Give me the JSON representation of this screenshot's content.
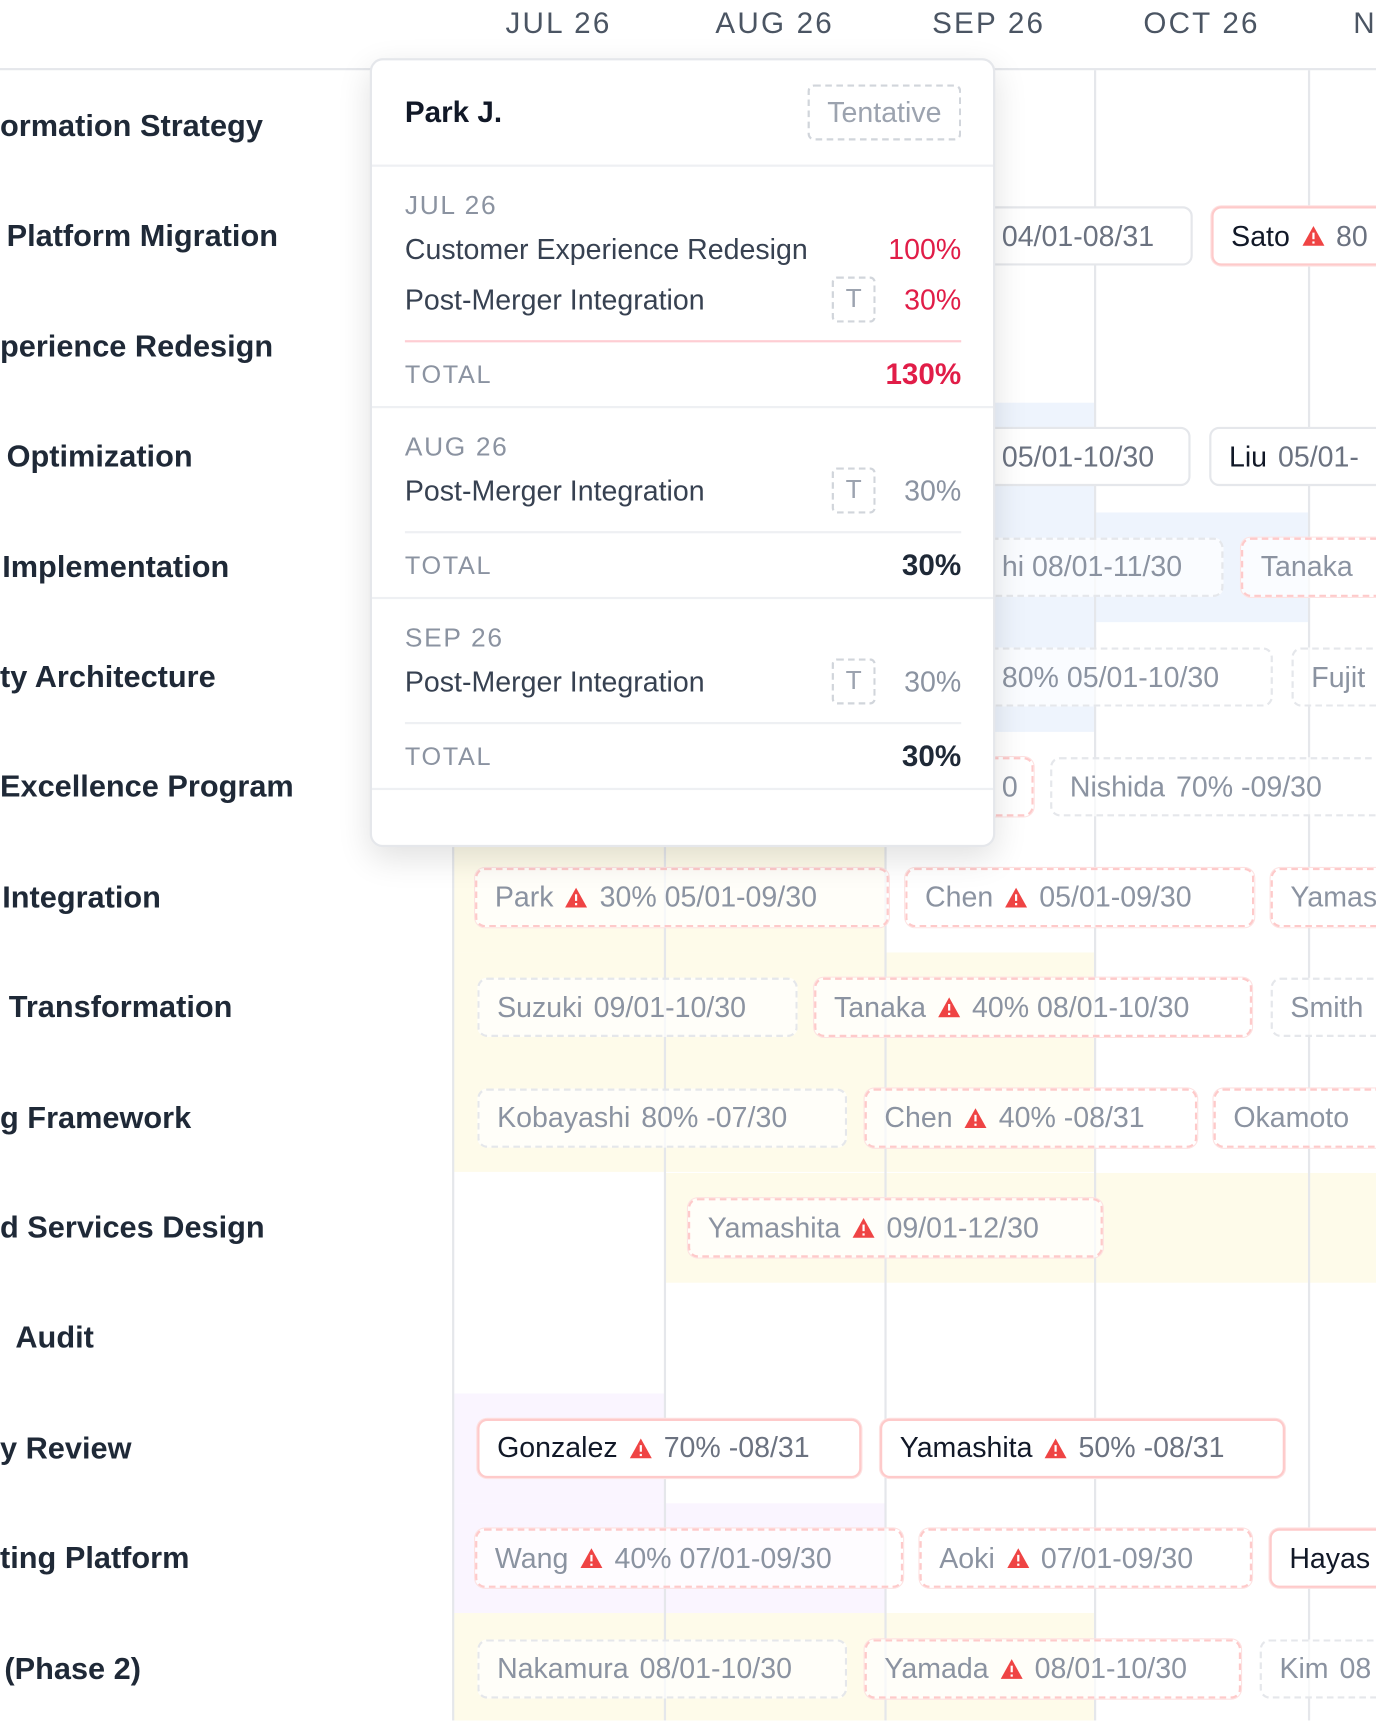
{
  "header": {
    "months": [
      "JUL 26",
      "AUG 26",
      "SEP 26",
      "OCT 26",
      "N"
    ]
  },
  "rows": [
    {
      "label": "ormation Strategy",
      "chips": []
    },
    {
      "label": "Platform Migration",
      "chips": [
        {
          "detail": "04/01-08/31"
        },
        {
          "name": "Sato",
          "detail": "80",
          "overallocated": true
        }
      ]
    },
    {
      "label": "perience Redesign",
      "chips": []
    },
    {
      "label": "Optimization",
      "chips": [
        {
          "detail": "05/01-10/30"
        },
        {
          "name": "Liu",
          "detail": "05/01-"
        }
      ]
    },
    {
      "label": "Implementation",
      "chips": [
        {
          "detail": "hi 08/01-11/30",
          "tentative": true
        },
        {
          "name": "Tanaka",
          "tentative": true,
          "overallocated": true
        }
      ]
    },
    {
      "label": "ty Architecture",
      "chips": [
        {
          "detail": "80% 05/01-10/30",
          "tentative": true
        },
        {
          "name": "Fujit",
          "tentative": true
        }
      ]
    },
    {
      "label": "Excellence Program",
      "chips": [
        {
          "detail": "0",
          "tentative": true,
          "overallocated": true
        },
        {
          "name": "Nishida",
          "detail": "70% -09/30",
          "tentative": true
        }
      ]
    },
    {
      "label": "Integration",
      "chips": [
        {
          "name": "Park",
          "detail": "30% 05/01-09/30",
          "tentative": true,
          "overallocated": true
        },
        {
          "name": "Chen",
          "detail": "05/01-09/30",
          "tentative": true,
          "overallocated": true
        },
        {
          "name": "Yamas",
          "tentative": true,
          "overallocated": true
        }
      ]
    },
    {
      "label": "Transformation",
      "chips": [
        {
          "name": "Suzuki",
          "detail": "09/01-10/30",
          "tentative": true
        },
        {
          "name": "Tanaka",
          "detail": "40% 08/01-10/30",
          "tentative": true,
          "overallocated": true
        },
        {
          "name": "Smith",
          "tentative": true
        }
      ]
    },
    {
      "label": "g Framework",
      "chips": [
        {
          "name": "Kobayashi",
          "detail": "80% -07/30",
          "tentative": true
        },
        {
          "name": "Chen",
          "detail": "40% -08/31",
          "tentative": true,
          "overallocated": true
        },
        {
          "name": "Okamoto",
          "tentative": true,
          "overallocated": true
        }
      ]
    },
    {
      "label": "d Services Design",
      "chips": [
        {
          "name": "Yamashita",
          "detail": "09/01-12/30",
          "tentative": true,
          "overallocated": true
        }
      ]
    },
    {
      "label": "Audit",
      "chips": []
    },
    {
      "label": "y Review",
      "chips": [
        {
          "name": "Gonzalez",
          "detail": "70% -08/31",
          "overallocated": true
        },
        {
          "name": "Yamashita",
          "detail": "50% -08/31",
          "overallocated": true
        }
      ]
    },
    {
      "label": "ting Platform",
      "chips": [
        {
          "name": "Wang",
          "detail": "40% 07/01-09/30",
          "tentative": true,
          "overallocated": true
        },
        {
          "name": "Aoki",
          "detail": "07/01-09/30",
          "tentative": true,
          "overallocated": true
        },
        {
          "name": "Hayas",
          "overallocated": true
        }
      ]
    },
    {
      "label": "(Phase 2)",
      "chips": [
        {
          "name": "Nakamura",
          "detail": "08/01-10/30",
          "tentative": true
        },
        {
          "name": "Yamada",
          "detail": "08/01-10/30",
          "tentative": true,
          "overallocated": true
        },
        {
          "name": "Kim",
          "detail": "08",
          "tentative": true
        }
      ]
    }
  ],
  "popup": {
    "name": "Park J.",
    "status": "Tentative",
    "months": [
      {
        "month": "JUL 26",
        "overallocated": true,
        "items": [
          {
            "project": "Customer Experience Redesign",
            "allocation": "100%"
          },
          {
            "project": "Post-Merger Integration",
            "badge": "T",
            "allocation": "30%"
          }
        ],
        "total_label": "TOTAL",
        "total": "130%"
      },
      {
        "month": "AUG 26",
        "items": [
          {
            "project": "Post-Merger Integration",
            "badge": "T",
            "allocation": "30%"
          }
        ],
        "total_label": "TOTAL",
        "total": "30%"
      },
      {
        "month": "SEP 26",
        "items": [
          {
            "project": "Post-Merger Integration",
            "badge": "T",
            "allocation": "30%"
          }
        ],
        "total_label": "TOTAL",
        "total": "30%"
      }
    ]
  }
}
